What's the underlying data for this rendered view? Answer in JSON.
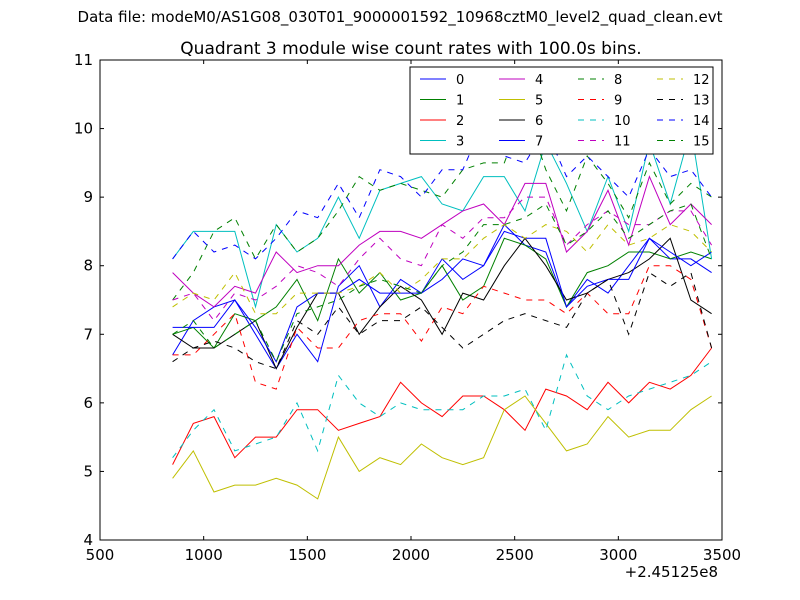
{
  "suptitle": "Data file: modeM0/AS1G08_030T01_9000001592_10968cztM0_level2_quad_clean.evt",
  "chart_data": {
    "type": "line",
    "title": "Quadrant 3 module wise count rates with 100.0s bins.",
    "xlabel": "",
    "ylabel": "",
    "x_offset_label": "+2.45125e8",
    "xlim": [
      500,
      3500
    ],
    "ylim": [
      4,
      11
    ],
    "xticks": [
      "500",
      "1000",
      "1500",
      "2000",
      "2500",
      "3000",
      "3500"
    ],
    "yticks": [
      "4",
      "5",
      "6",
      "7",
      "8",
      "9",
      "10",
      "11"
    ],
    "x": [
      850,
      950,
      1050,
      1150,
      1250,
      1350,
      1450,
      1550,
      1650,
      1750,
      1850,
      1950,
      2050,
      2150,
      2250,
      2350,
      2450,
      2550,
      2650,
      2750,
      2850,
      2950,
      3050,
      3150,
      3250,
      3350,
      3450
    ],
    "legend_location": "top-right",
    "series": [
      {
        "name": "0",
        "color": "#0000ff",
        "dash": false,
        "values": [
          6.7,
          7.2,
          7.4,
          7.5,
          7.0,
          6.5,
          7.0,
          6.6,
          7.7,
          8.0,
          7.4,
          7.8,
          7.6,
          8.1,
          7.8,
          8.0,
          8.6,
          8.3,
          8.2,
          7.4,
          7.8,
          7.6,
          8.0,
          8.4,
          8.1,
          8.1,
          7.9
        ]
      },
      {
        "name": "1",
        "color": "#008000",
        "dash": false,
        "values": [
          7.0,
          7.1,
          6.8,
          7.3,
          7.2,
          7.4,
          7.8,
          7.2,
          8.1,
          7.6,
          7.9,
          7.5,
          7.6,
          8.0,
          7.5,
          7.7,
          8.4,
          8.3,
          8.1,
          7.4,
          7.9,
          8.0,
          8.2,
          8.2,
          8.1,
          8.2,
          8.1
        ]
      },
      {
        "name": "2",
        "color": "#ff0000",
        "dash": false,
        "values": [
          5.1,
          5.7,
          5.8,
          5.2,
          5.5,
          5.5,
          5.9,
          5.9,
          5.6,
          5.7,
          5.8,
          6.3,
          6.0,
          5.8,
          6.1,
          6.1,
          5.9,
          5.6,
          6.2,
          6.1,
          5.9,
          6.3,
          6.0,
          6.3,
          6.2,
          6.4,
          6.8
        ]
      },
      {
        "name": "3",
        "color": "#00bfbf",
        "dash": false,
        "values": [
          8.1,
          8.5,
          8.5,
          8.5,
          7.4,
          8.6,
          8.2,
          8.4,
          9.0,
          8.4,
          9.1,
          9.2,
          9.3,
          8.9,
          8.8,
          9.3,
          9.3,
          8.8,
          9.8,
          9.2,
          8.5,
          9.3,
          8.5,
          9.8,
          8.9,
          10.0,
          8.1
        ]
      },
      {
        "name": "4",
        "color": "#bf00bf",
        "dash": false,
        "values": [
          7.9,
          7.6,
          7.4,
          7.7,
          7.6,
          8.2,
          7.9,
          8.0,
          8.0,
          8.3,
          8.5,
          8.5,
          8.4,
          8.6,
          8.8,
          8.9,
          8.6,
          9.2,
          9.2,
          8.2,
          8.5,
          9.1,
          8.3,
          9.3,
          8.6,
          8.9,
          8.6
        ]
      },
      {
        "name": "5",
        "color": "#bfbf00",
        "dash": false,
        "values": [
          4.9,
          5.3,
          4.7,
          4.8,
          4.8,
          4.9,
          4.8,
          4.6,
          5.5,
          5.0,
          5.2,
          5.1,
          5.4,
          5.2,
          5.1,
          5.2,
          5.9,
          6.1,
          5.7,
          5.3,
          5.4,
          5.8,
          5.5,
          5.6,
          5.6,
          5.9,
          6.1
        ]
      },
      {
        "name": "6",
        "color": "#000000",
        "dash": false,
        "values": [
          7.0,
          6.8,
          6.8,
          7.0,
          7.2,
          6.5,
          7.1,
          7.6,
          7.6,
          7.0,
          7.4,
          7.7,
          7.5,
          7.0,
          7.6,
          7.5,
          8.0,
          8.4,
          8.0,
          7.5,
          7.6,
          7.8,
          7.9,
          8.1,
          8.4,
          7.5,
          7.3
        ]
      },
      {
        "name": "7",
        "color": "#0000ff",
        "dash": false,
        "values": [
          7.1,
          7.1,
          7.1,
          7.5,
          7.1,
          6.6,
          7.4,
          7.6,
          7.6,
          7.8,
          7.6,
          7.6,
          7.6,
          7.8,
          8.1,
          8.0,
          8.5,
          8.4,
          8.4,
          7.4,
          7.7,
          7.8,
          7.8,
          8.4,
          8.2,
          8.0,
          8.2
        ]
      },
      {
        "name": "8",
        "color": "#008000",
        "dash": true,
        "values": [
          7.5,
          7.9,
          8.5,
          8.7,
          8.1,
          8.6,
          8.2,
          8.4,
          8.8,
          9.3,
          9.1,
          9.2,
          9.1,
          9.0,
          9.4,
          9.5,
          9.5,
          10.3,
          9.4,
          8.8,
          9.6,
          9.2,
          8.7,
          9.5,
          8.9,
          9.2,
          9.0
        ]
      },
      {
        "name": "9",
        "color": "#ff0000",
        "dash": true,
        "values": [
          6.7,
          6.7,
          7.0,
          7.3,
          6.3,
          6.2,
          7.1,
          6.8,
          6.8,
          7.2,
          7.3,
          7.3,
          6.9,
          7.4,
          7.3,
          7.7,
          7.6,
          7.5,
          7.5,
          7.3,
          7.6,
          7.3,
          7.3,
          8.0,
          8.0,
          7.8,
          6.8
        ]
      },
      {
        "name": "10",
        "color": "#00bfbf",
        "dash": true,
        "values": [
          5.2,
          5.6,
          5.9,
          5.3,
          5.4,
          5.5,
          6.0,
          5.3,
          6.4,
          6.0,
          5.8,
          6.0,
          5.9,
          5.9,
          5.9,
          6.1,
          6.1,
          6.2,
          5.6,
          6.7,
          6.1,
          5.9,
          6.1,
          6.2,
          6.3,
          6.4,
          6.6
        ]
      },
      {
        "name": "11",
        "color": "#bf00bf",
        "dash": true,
        "values": [
          7.5,
          7.6,
          7.2,
          7.6,
          7.5,
          7.7,
          8.0,
          7.9,
          7.7,
          8.1,
          8.4,
          8.1,
          8.0,
          8.6,
          8.4,
          8.7,
          8.7,
          9.0,
          9.0,
          8.3,
          8.6,
          8.8,
          8.6,
          8.6,
          8.8,
          8.8,
          8.3
        ]
      },
      {
        "name": "12",
        "color": "#bfbf00",
        "dash": true,
        "values": [
          7.4,
          7.6,
          7.5,
          7.9,
          7.3,
          7.3,
          7.6,
          7.6,
          7.6,
          7.7,
          7.9,
          7.6,
          7.8,
          8.1,
          8.1,
          8.4,
          8.6,
          8.4,
          8.6,
          8.5,
          8.2,
          8.6,
          8.3,
          8.4,
          8.6,
          8.5,
          8.2
        ]
      },
      {
        "name": "13",
        "color": "#000000",
        "dash": true,
        "values": [
          6.6,
          6.8,
          6.9,
          6.8,
          6.6,
          6.5,
          7.2,
          7.0,
          7.4,
          7.0,
          7.2,
          7.2,
          7.4,
          7.1,
          6.8,
          7.0,
          7.2,
          7.3,
          7.2,
          7.1,
          7.6,
          7.8,
          7.0,
          7.9,
          7.7,
          7.9,
          6.8
        ]
      },
      {
        "name": "14",
        "color": "#0000ff",
        "dash": true,
        "values": [
          8.1,
          8.5,
          8.2,
          8.3,
          8.1,
          8.4,
          8.8,
          8.7,
          9.2,
          8.7,
          9.4,
          9.3,
          9.0,
          9.4,
          9.4,
          10.1,
          9.6,
          9.5,
          10.0,
          9.3,
          9.6,
          9.3,
          9.0,
          9.7,
          9.3,
          9.4,
          9.0
        ]
      },
      {
        "name": "15",
        "color": "#008000",
        "dash": true,
        "values": [
          7.0,
          7.2,
          6.8,
          7.0,
          7.2,
          6.6,
          7.3,
          7.4,
          7.5,
          7.7,
          7.8,
          7.7,
          7.6,
          8.0,
          8.2,
          8.6,
          8.6,
          8.7,
          8.9,
          8.3,
          8.5,
          8.8,
          8.4,
          8.6,
          8.8,
          8.9,
          8.1
        ]
      }
    ]
  }
}
